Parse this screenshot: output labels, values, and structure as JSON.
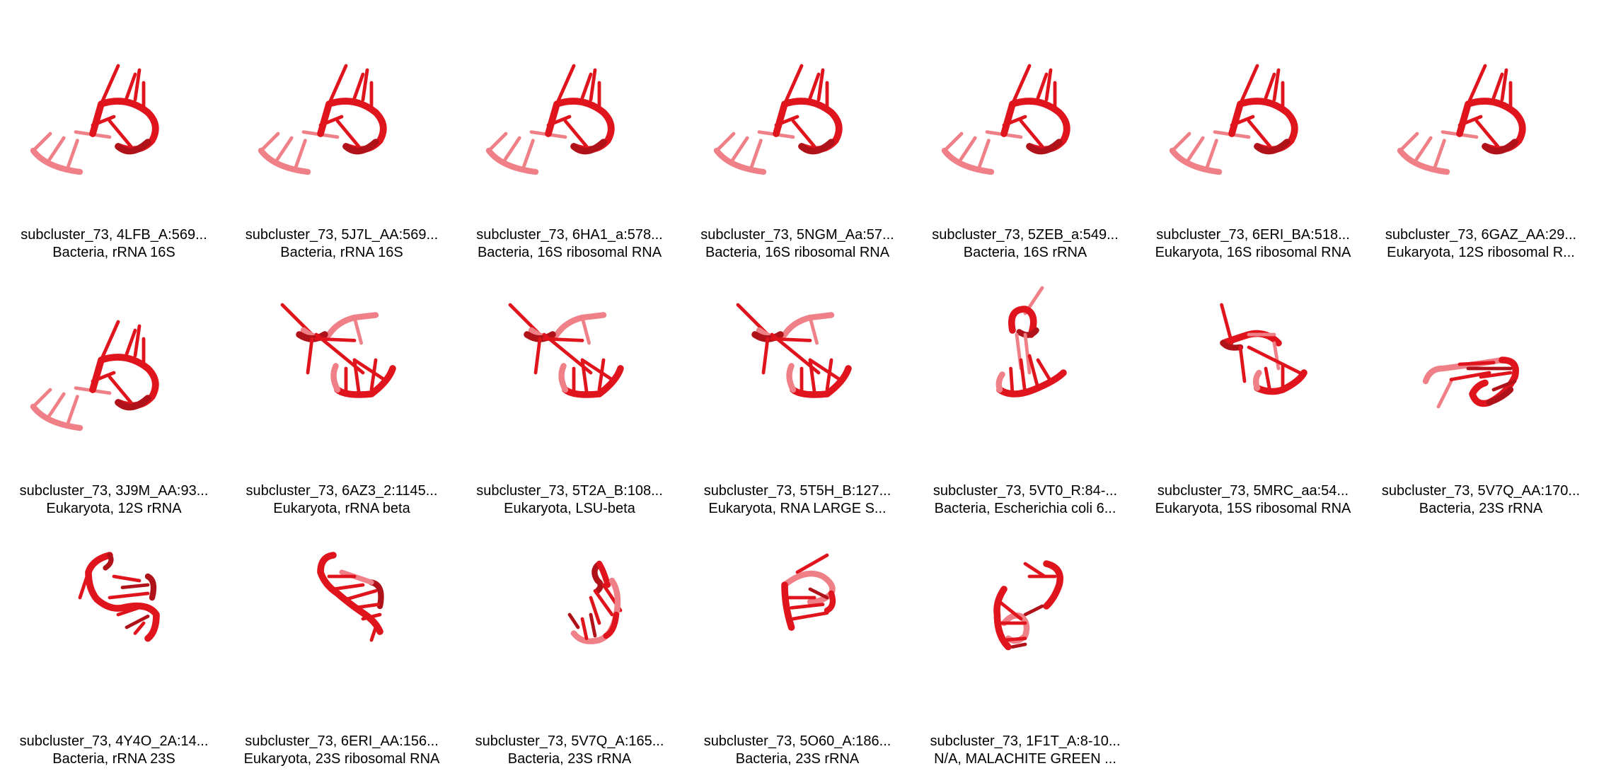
{
  "colors": {
    "background": "#ffffff",
    "backbone_dark": "#b0121a",
    "backbone": "#e0141c",
    "backbone_light": "#f08088",
    "text": "#000000"
  },
  "items": [
    {
      "title": "subcluster_73, 4LFB_A:569...",
      "subtitle": "Bacteria, rRNA 16S",
      "shape": "a"
    },
    {
      "title": "subcluster_73, 5J7L_AA:569...",
      "subtitle": "Bacteria, rRNA 16S",
      "shape": "a"
    },
    {
      "title": "subcluster_73, 6HA1_a:578...",
      "subtitle": "Bacteria, 16S ribosomal RNA",
      "shape": "a"
    },
    {
      "title": "subcluster_73, 5NGM_Aa:57...",
      "subtitle": "Bacteria, 16S ribosomal RNA",
      "shape": "a"
    },
    {
      "title": "subcluster_73, 5ZEB_a:549...",
      "subtitle": "Bacteria, 16S rRNA",
      "shape": "a"
    },
    {
      "title": "subcluster_73, 6ERI_BA:518...",
      "subtitle": "Eukaryota, 16S ribosomal RNA",
      "shape": "a"
    },
    {
      "title": "subcluster_73, 6GAZ_AA:29...",
      "subtitle": "Eukaryota, 12S ribosomal R...",
      "shape": "a"
    },
    {
      "title": "subcluster_73, 3J9M_AA:93...",
      "subtitle": "Eukaryota, 12S rRNA",
      "shape": "a"
    },
    {
      "title": "subcluster_73, 6AZ3_2:1145...",
      "subtitle": "Eukaryota, rRNA beta",
      "shape": "b"
    },
    {
      "title": "subcluster_73, 5T2A_B:108...",
      "subtitle": "Eukaryota, LSU-beta",
      "shape": "b"
    },
    {
      "title": "subcluster_73, 5T5H_B:127...",
      "subtitle": "Eukaryota, RNA LARGE S...",
      "shape": "b"
    },
    {
      "title": "subcluster_73, 5VT0_R:84-...",
      "subtitle": "Bacteria, Escherichia coli 6...",
      "shape": "c"
    },
    {
      "title": "subcluster_73, 5MRC_aa:54...",
      "subtitle": "Eukaryota, 15S ribosomal RNA",
      "shape": "d"
    },
    {
      "title": "subcluster_73, 5V7Q_AA:170...",
      "subtitle": "Bacteria, 23S rRNA",
      "shape": "e"
    },
    {
      "title": "subcluster_73, 4Y4O_2A:14...",
      "subtitle": "Bacteria, rRNA 23S",
      "shape": "f"
    },
    {
      "title": "subcluster_73, 6ERI_AA:156...",
      "subtitle": "Eukaryota, 23S ribosomal RNA",
      "shape": "g"
    },
    {
      "title": "subcluster_73, 5V7Q_A:165...",
      "subtitle": "Bacteria, 23S rRNA",
      "shape": "h"
    },
    {
      "title": "subcluster_73, 5O60_A:186...",
      "subtitle": "Bacteria, 23S rRNA",
      "shape": "i"
    },
    {
      "title": "subcluster_73, 1F1T_A:8-10...",
      "subtitle": "N/A, MALACHITE GREEN ...",
      "shape": "j"
    }
  ]
}
